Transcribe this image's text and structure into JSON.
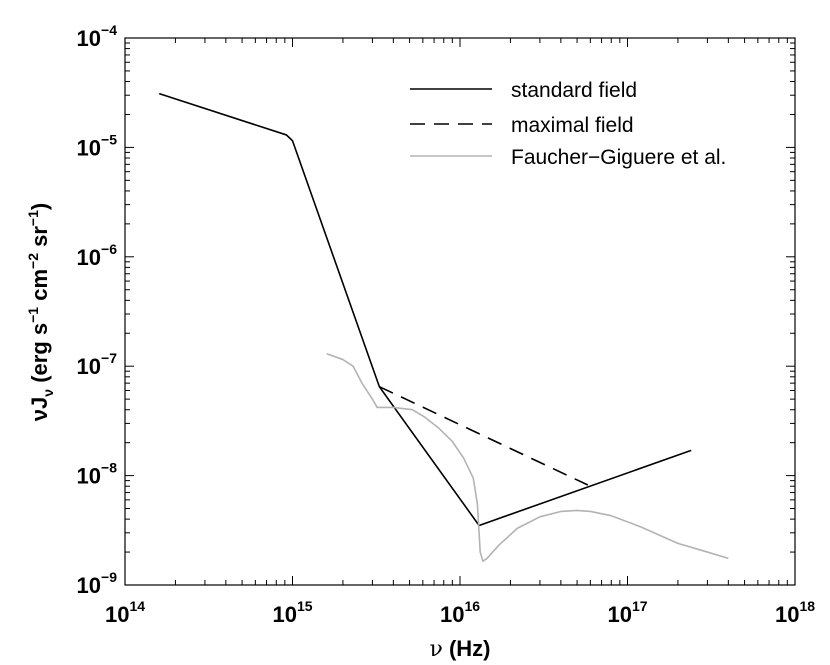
{
  "chart_data": {
    "type": "line",
    "scale": "log-log",
    "xlabel_main": "ν",
    "xlabel_unit": "(Hz)",
    "ylabel_main": "νJ",
    "ylabel_sub": "ν",
    "ylabel_units": "(erg s",
    "ylabel_parts": [
      " cm",
      " sr",
      ")"
    ],
    "ylabel_exps": [
      "−1",
      "−2",
      "−1"
    ],
    "xlim": [
      100000000000000.0,
      1e+18
    ],
    "ylim": [
      1e-09,
      0.0001
    ],
    "x_ticks": [
      {
        "value": 100000000000000.0,
        "base": "10",
        "exp": "14"
      },
      {
        "value": 1000000000000000.0,
        "base": "10",
        "exp": "15"
      },
      {
        "value": 1e+16,
        "base": "10",
        "exp": "16"
      },
      {
        "value": 1e+17,
        "base": "10",
        "exp": "17"
      },
      {
        "value": 1e+18,
        "base": "10",
        "exp": "18"
      }
    ],
    "y_ticks": [
      {
        "value": 1e-09,
        "base": "10",
        "exp": "−9"
      },
      {
        "value": 1e-08,
        "base": "10",
        "exp": "−8"
      },
      {
        "value": 1e-07,
        "base": "10",
        "exp": "−7"
      },
      {
        "value": 1e-06,
        "base": "10",
        "exp": "−6"
      },
      {
        "value": 1e-05,
        "base": "10",
        "exp": "−5"
      },
      {
        "value": 0.0001,
        "base": "10",
        "exp": "−4"
      }
    ],
    "legend_position": "top-right",
    "series": [
      {
        "name": "standard field",
        "color": "#000000",
        "dash": "solid",
        "x": [
          160000000000000.0,
          920000000000000.0,
          1000000000000000.0,
          3300000000000000.0,
          1.3e+16,
          2.4e+17
        ],
        "y": [
          3.1e-05,
          1.3e-05,
          1.15e-05,
          6.5e-08,
          3.5e-09,
          1.7e-08
        ]
      },
      {
        "name": "maximal field",
        "color": "#000000",
        "dash": "dashed",
        "x": [
          3300000000000000.0,
          5.8e+16
        ],
        "y": [
          6.5e-08,
          8.2e-09
        ]
      },
      {
        "name": "Faucher−Giguere et al.",
        "color": "#b3b3b3",
        "dash": "solid",
        "x": [
          1600000000000000.0,
          2000000000000000.0,
          2300000000000000.0,
          2600000000000000.0,
          3000000000000000.0,
          3200000000000000.0,
          4000000000000000.0,
          5200000000000000.0,
          6200000000000000.0,
          7500000000000000.0,
          9000000000000000.0,
          1.05e+16,
          1.2e+16,
          1.27e+16,
          1.32e+16,
          1.37e+16,
          1.45e+16,
          1.7e+16,
          2.2e+16,
          3e+16,
          4e+16,
          5e+16,
          6e+16,
          8e+16,
          1.2e+17,
          2e+17,
          3e+17,
          4e+17
        ],
        "y": [
          1.3e-07,
          1.15e-07,
          1e-07,
          7e-08,
          5e-08,
          4.2e-08,
          4.2e-08,
          4e-08,
          3.4e-08,
          2.7e-08,
          2.05e-08,
          1.45e-08,
          9.5e-09,
          5.5e-09,
          2e-09,
          1.65e-09,
          1.75e-09,
          2.3e-09,
          3.3e-09,
          4.2e-09,
          4.7e-09,
          4.8e-09,
          4.7e-09,
          4.3e-09,
          3.4e-09,
          2.4e-09,
          2e-09,
          1.75e-09
        ]
      }
    ]
  }
}
